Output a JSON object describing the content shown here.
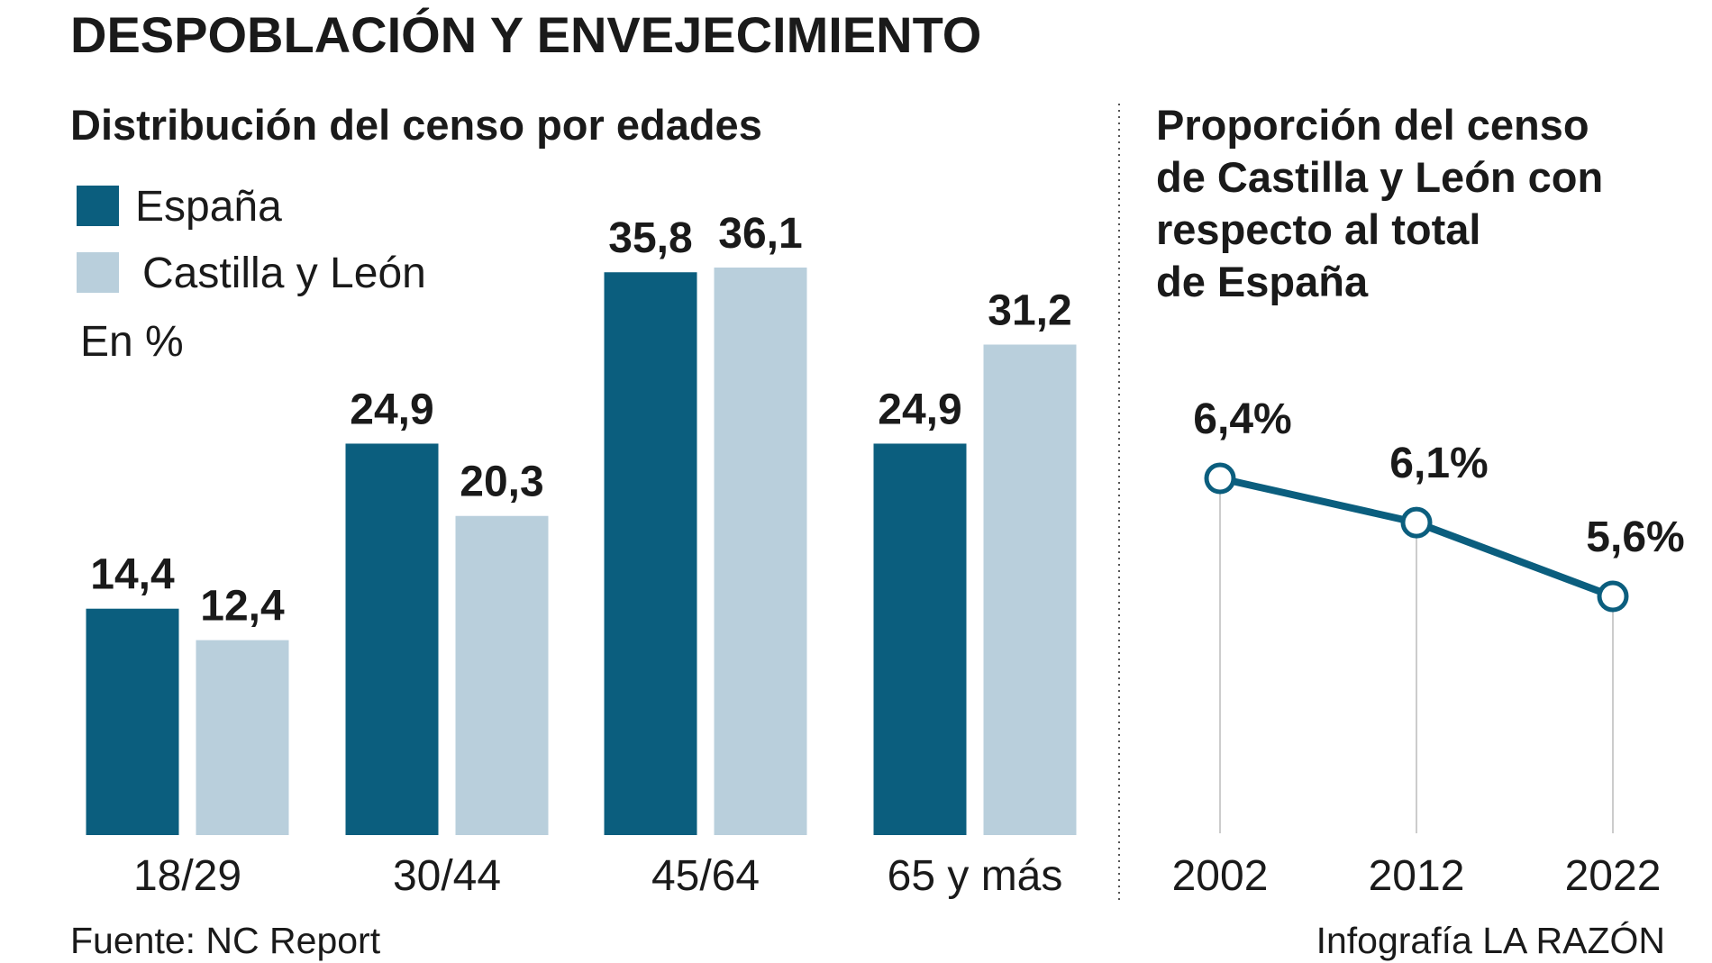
{
  "title": "DESPOBLACIÓN Y ENVEJECIMIENTO",
  "source": "Fuente: NC Report",
  "credit": "Infografía LA RAZÓN",
  "chart_data": [
    {
      "type": "bar",
      "title": "Distribución del censo por edades",
      "unit_note": "En %",
      "categories": [
        "18/29",
        "30/44",
        "45/64",
        "65 y más"
      ],
      "series": [
        {
          "name": "España",
          "color": "#0b5e7e",
          "values": [
            14.4,
            24.9,
            35.8,
            24.9
          ],
          "value_labels": [
            "14,4",
            "24,9",
            "35,8",
            "24,9"
          ]
        },
        {
          "name": "Castilla y León",
          "color": "#b9cfdc",
          "values": [
            12.4,
            20.3,
            36.1,
            31.2
          ],
          "value_labels": [
            "12,4",
            "20,3",
            "36,1",
            "31,2"
          ]
        }
      ]
    },
    {
      "type": "line",
      "title": [
        "Proporción del censo",
        "de Castilla y León con",
        "respecto al total",
        "de España"
      ],
      "categories": [
        "2002",
        "2012",
        "2022"
      ],
      "color": "#0b5e7e",
      "values": [
        6.4,
        6.1,
        5.6
      ],
      "value_labels": [
        "6,4%",
        "6,1%",
        "5,6%"
      ]
    }
  ]
}
